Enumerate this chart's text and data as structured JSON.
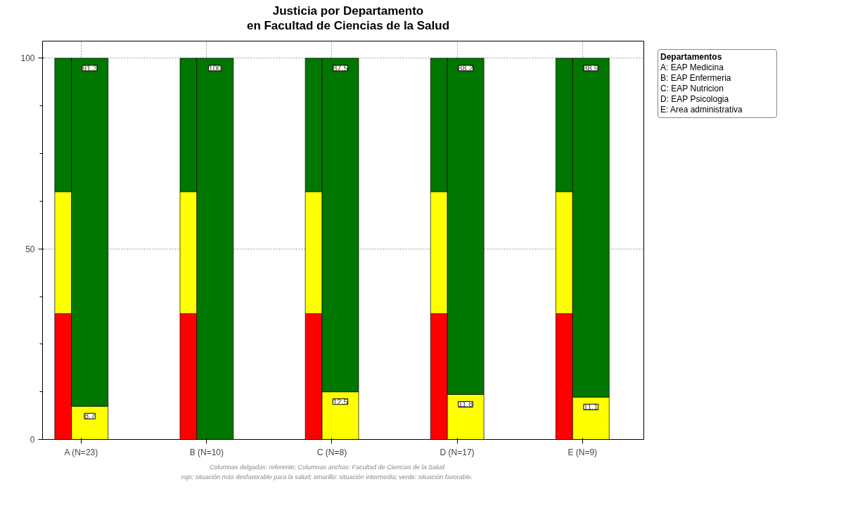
{
  "chart_data": [
    {
      "type": "bar",
      "stacked": true,
      "title": "Justicia por Departamento\nen Facultad de Ciencias de la Salud",
      "categories": [
        "A (N=23)",
        "B (N=10)",
        "C (N=8)",
        "D (N=17)",
        "E (N=9)"
      ],
      "series": [
        {
          "color": "#ffff00",
          "values": [
            8.7,
            0,
            12.5,
            11.8,
            11.1
          ],
          "value_labels": [
            "8.7",
            null,
            "12.5",
            "11.8",
            "11.1"
          ]
        },
        {
          "color": "#007700",
          "values": [
            91.3,
            100,
            87.5,
            88.2,
            88.9
          ],
          "value_labels": [
            "91.3",
            "100",
            "87.5",
            "88.2",
            "88.9"
          ]
        }
      ],
      "ylim": [
        0,
        104.5
      ],
      "yticks": [
        0,
        50,
        100
      ],
      "grid": true,
      "legend_title": "Departamentos",
      "annotations": [
        "A: EAP Medicina",
        "B: EAP Enfermeria",
        "C: EAP Nutricion",
        "D: EAP Psicologia",
        "E: Area administrativa",
        "Columnas delgadas: referente; Columnas anchas: Facultad de Ciencias de la Salud",
        "rojo: situación más desfavorable para la salud; amarillo: situación intermedia; verde: situación favorable."
      ]
    },
    {
      "type": "bar",
      "stacked": true,
      "series": [
        {
          "color": "#ff0000",
          "values": [
            33,
            33,
            33,
            33,
            33
          ]
        },
        {
          "color": "#ffff00",
          "values": [
            32,
            32,
            32,
            32,
            32
          ]
        },
        {
          "color": "#007700",
          "values": [
            35,
            35,
            35,
            35,
            35
          ]
        }
      ],
      "ylim": [
        0,
        104.5
      ],
      "tick_labels": false
    }
  ]
}
